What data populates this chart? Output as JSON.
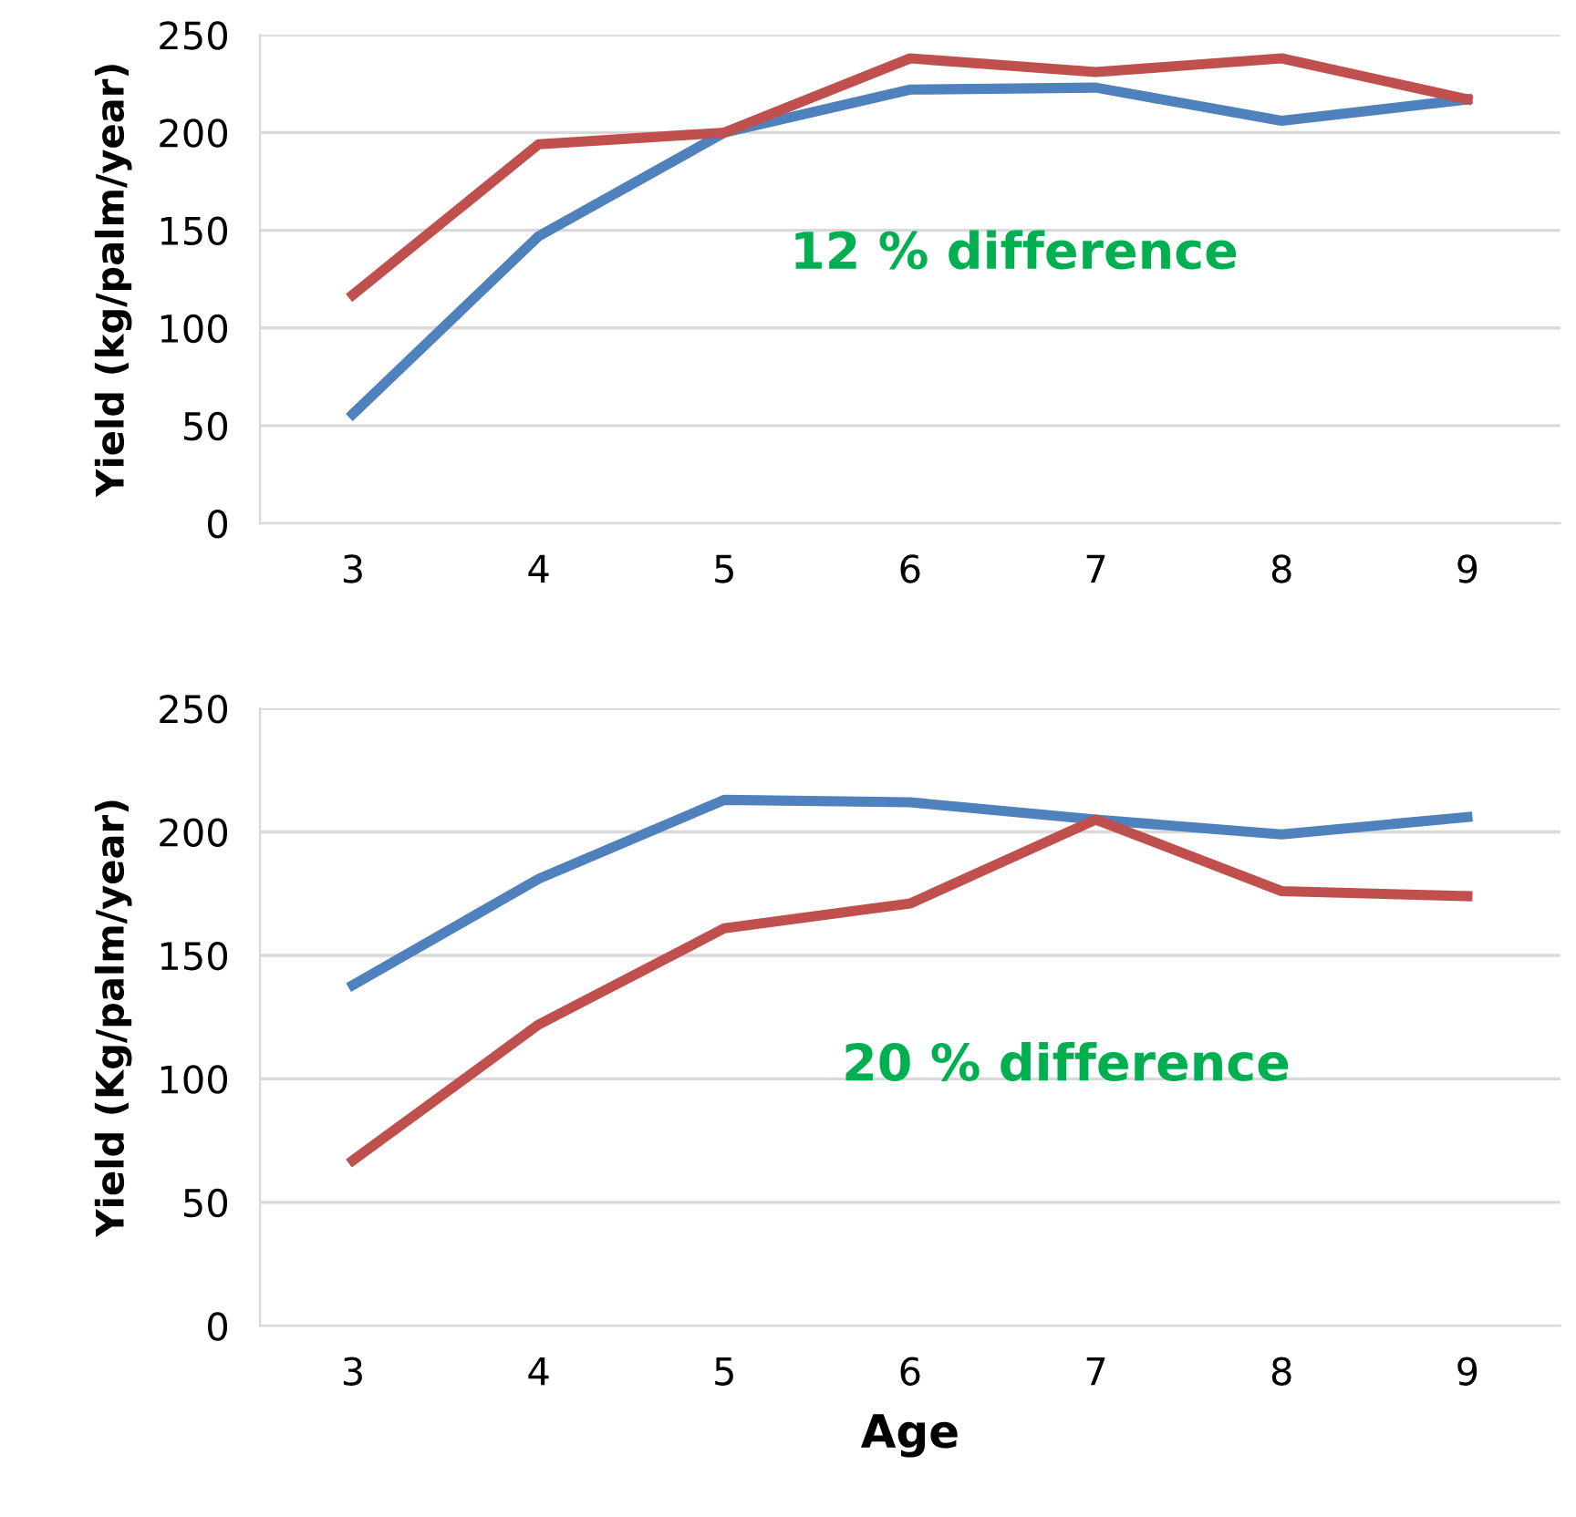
{
  "chart_data": [
    {
      "type": "line",
      "ylabel": "Yield (kg/palm/year)",
      "categories": [
        "3",
        "4",
        "5",
        "6",
        "7",
        "8",
        "9"
      ],
      "series": [
        {
          "color": "#4f81bd",
          "values": [
            56,
            147,
            200,
            222,
            223,
            206,
            217
          ]
        },
        {
          "color": "#c0504d",
          "values": [
            117,
            194,
            200,
            238,
            231,
            238,
            217
          ]
        }
      ],
      "ylim": [
        0,
        250
      ],
      "yticks": [
        0,
        50,
        100,
        150,
        200,
        250
      ],
      "grid": "y",
      "marker": "none",
      "line_style": "solid",
      "annotations": [
        "12 % difference"
      ]
    },
    {
      "type": "line",
      "ylabel": "Yield (Kg/palm/year)",
      "xlabel": "Age",
      "categories": [
        "3",
        "4",
        "5",
        "6",
        "7",
        "8",
        "9"
      ],
      "series": [
        {
          "color": "#4f81bd",
          "values": [
            138,
            181,
            213,
            212,
            205,
            199,
            206
          ]
        },
        {
          "color": "#c0504d",
          "values": [
            67,
            122,
            161,
            171,
            205,
            176,
            174
          ]
        }
      ],
      "ylim": [
        0,
        250
      ],
      "yticks": [
        0,
        50,
        100,
        150,
        200,
        250
      ],
      "grid": "y",
      "marker": "none",
      "line_style": "solid",
      "annotations": [
        "20 % difference"
      ]
    }
  ]
}
